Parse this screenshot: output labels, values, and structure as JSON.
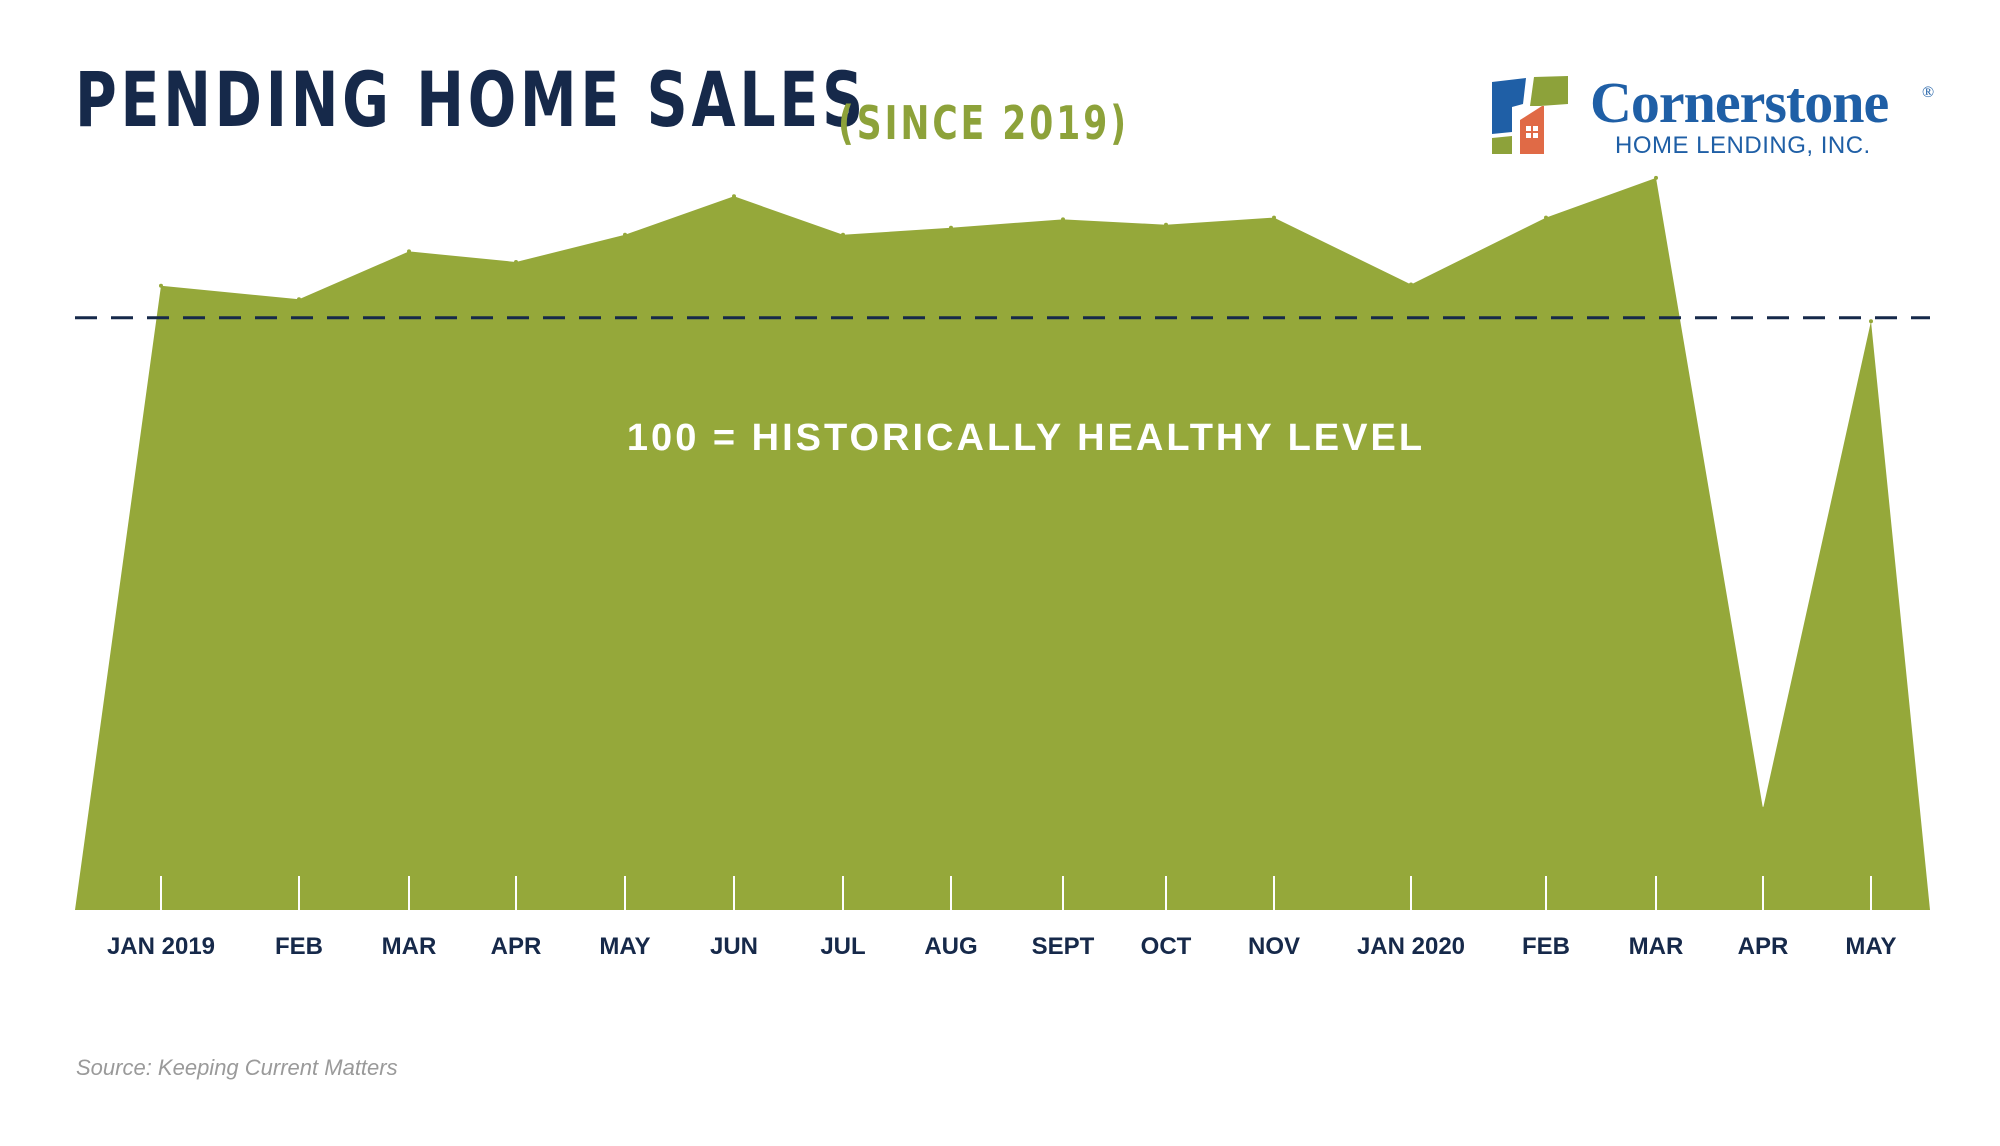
{
  "header": {
    "title": "PENDING HOME SALES",
    "subtitle": "(SINCE 2019)"
  },
  "logo": {
    "name": "Cornerstone",
    "registered": "®",
    "tagline": "HOME LENDING, INC."
  },
  "colors": {
    "area": "#95a83a",
    "reference_line": "#16294a",
    "title": "#16294a",
    "subtitle": "#8da23a",
    "axis_labels": "#16294a",
    "annotation": "#ffffff",
    "logo_blue": "#1f5fa6",
    "logo_green": "#8da23a",
    "logo_orange": "#e06a46"
  },
  "footer": {
    "source": "Source: Keeping Current Matters"
  },
  "chart_data": {
    "type": "area",
    "categories": [
      "JAN 2019",
      "FEB",
      "MAR",
      "APR",
      "MAY",
      "JUN",
      "JUL",
      "AUG",
      "SEPT",
      "OCT",
      "NOV",
      "JAN 2020",
      "FEB",
      "MAR",
      "APR",
      "MAY"
    ],
    "values": [
      105.4,
      103.1,
      111.2,
      109.4,
      114.0,
      120.5,
      114.0,
      115.2,
      116.6,
      115.7,
      116.9,
      105.6,
      116.9,
      123.6,
      17.1,
      99.4
    ],
    "ylim": [
      0,
      130
    ],
    "reference_line": {
      "value": 100,
      "style": "dashed",
      "label": "100 = HISTORICALLY HEALTHY LEVEL"
    },
    "y_axis_shown": false,
    "grid": false,
    "legend": "none"
  }
}
